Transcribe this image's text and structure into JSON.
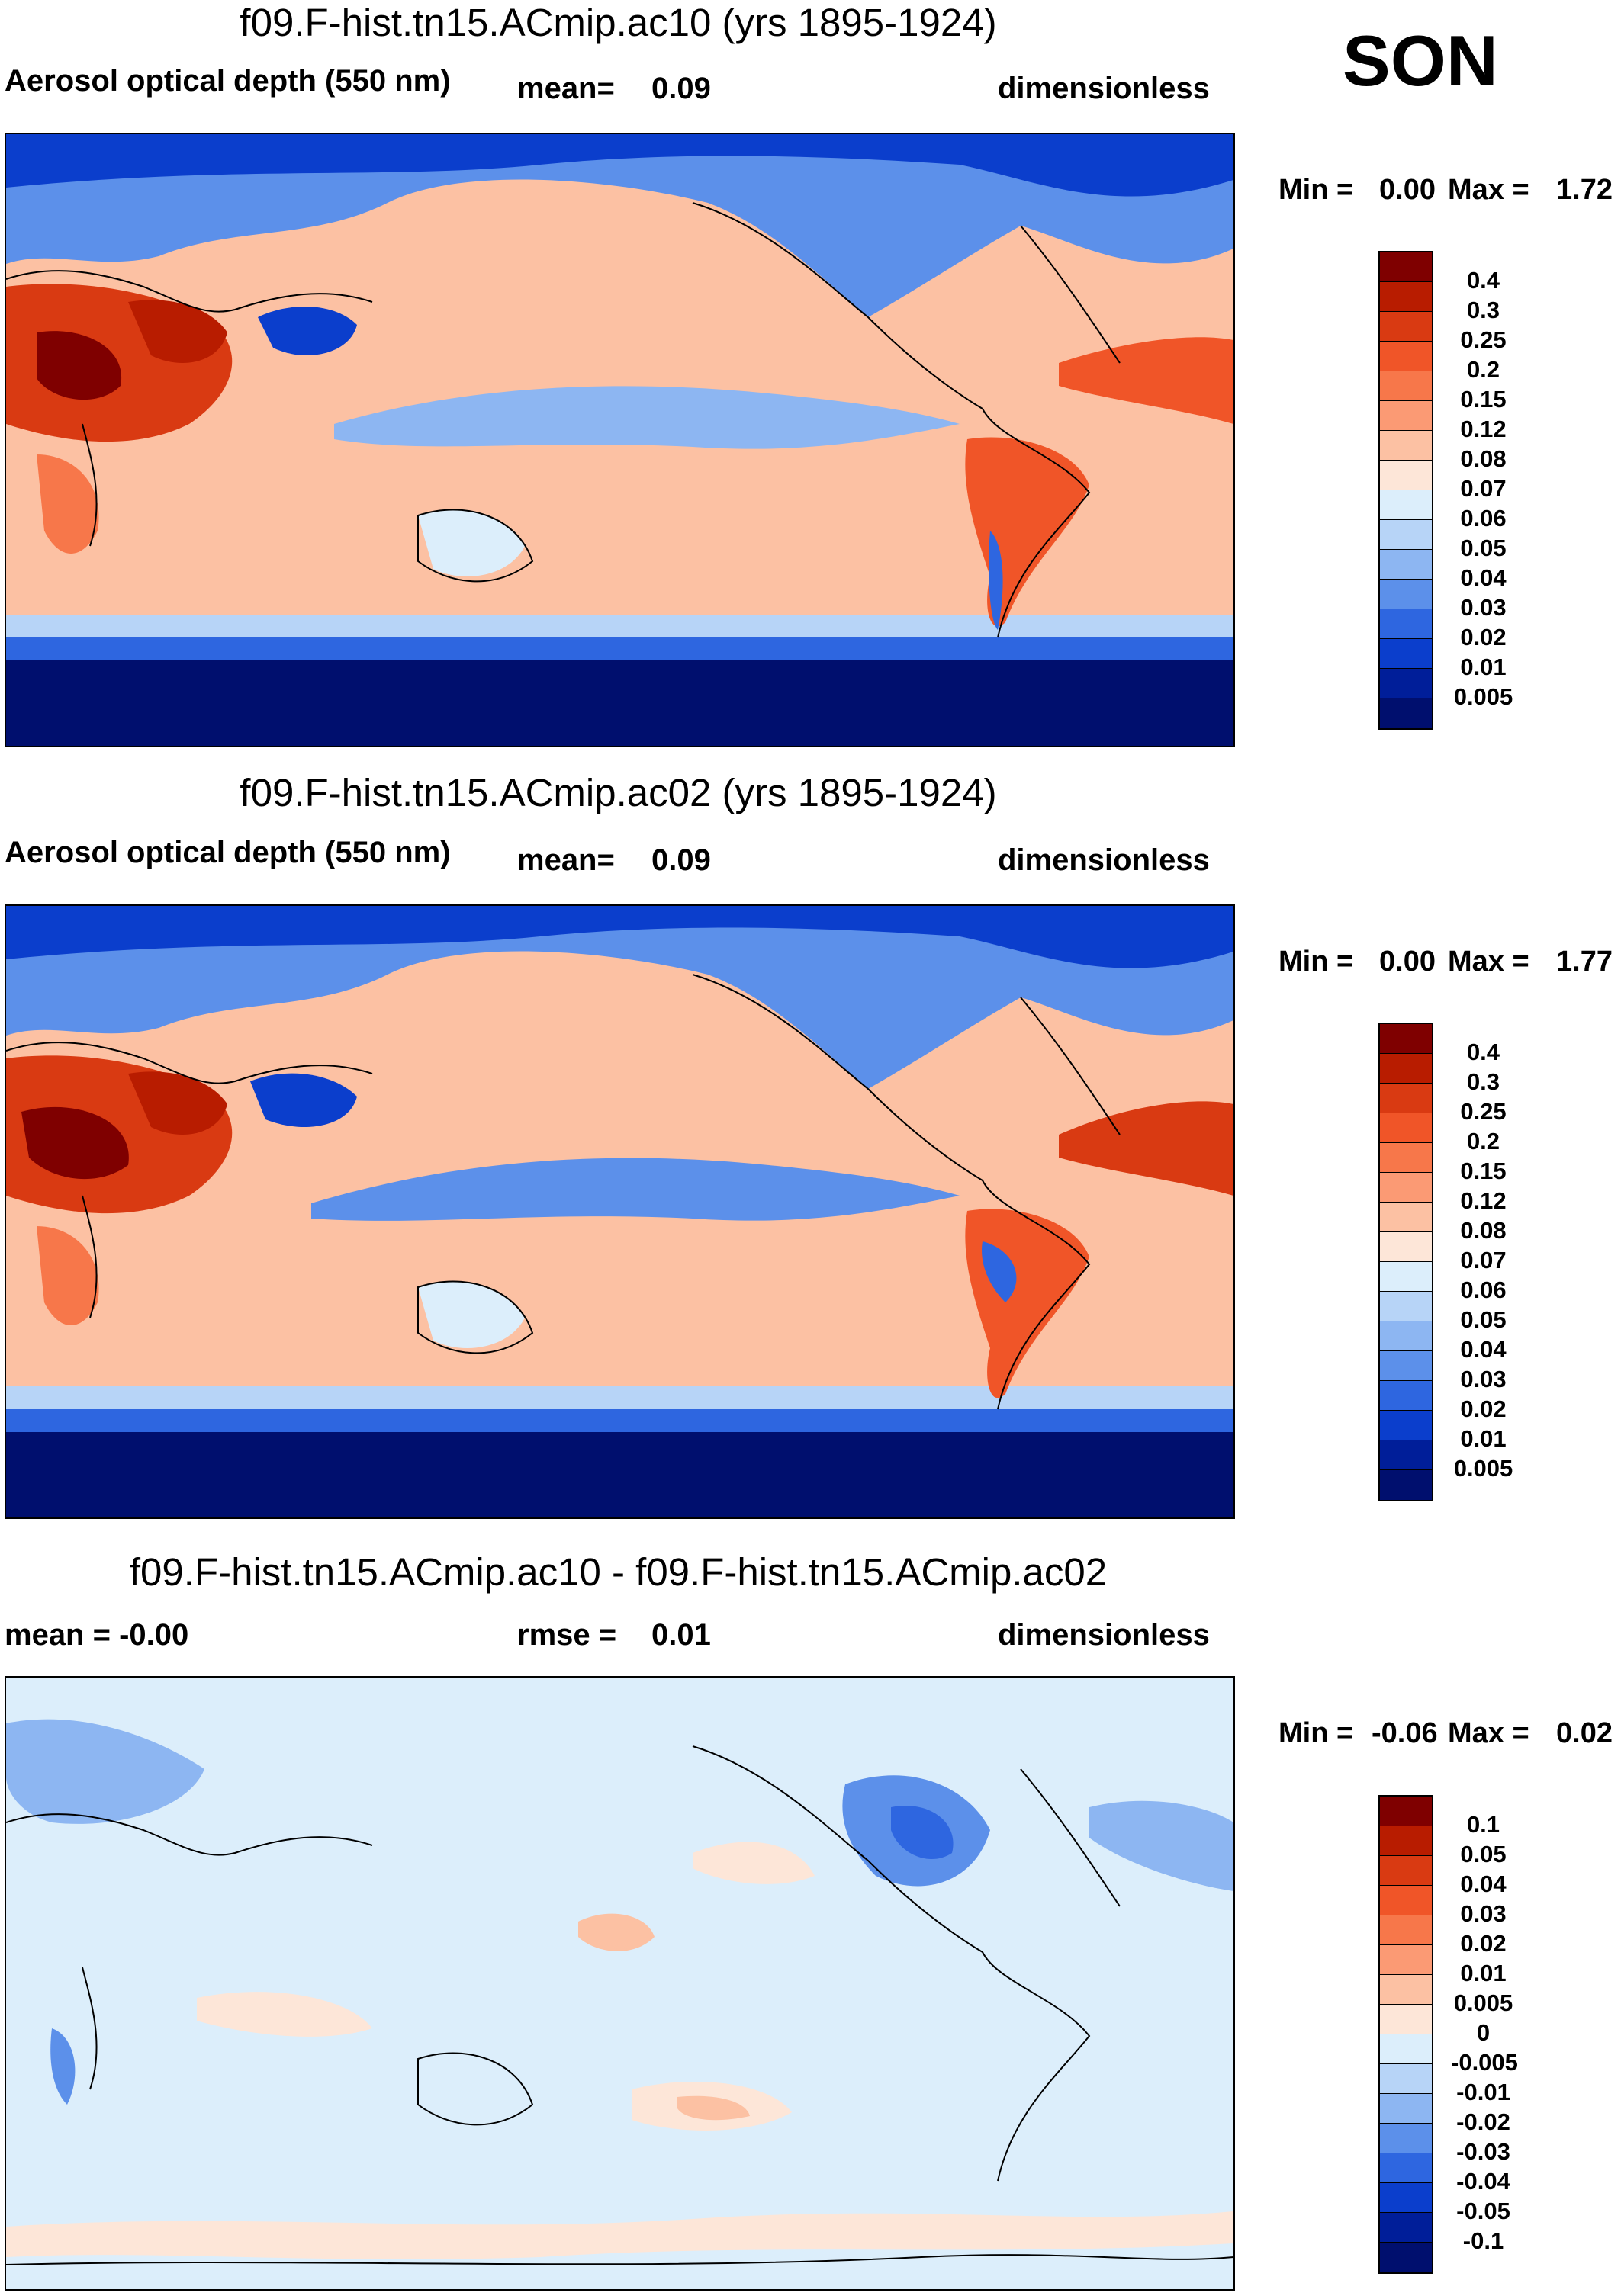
{
  "season": "SON",
  "panels": [
    {
      "title": "f09.F-hist.tn15.ACmip.ac10 (yrs 1895-1924)",
      "left_label": "Aerosol optical depth (550 nm)",
      "stat1_label": "mean=",
      "stat1_value": "0.09",
      "units": "dimensionless",
      "min_label": "Min =",
      "min_value": "0.00",
      "max_label": "Max =",
      "max_value": "1.72"
    },
    {
      "title": "f09.F-hist.tn15.ACmip.ac02 (yrs 1895-1924)",
      "left_label": "Aerosol optical depth (550 nm)",
      "stat1_label": "mean=",
      "stat1_value": "0.09",
      "units": "dimensionless",
      "min_label": "Min =",
      "min_value": "0.00",
      "max_label": "Max =",
      "max_value": "1.77"
    },
    {
      "title": "f09.F-hist.tn15.ACmip.ac10 - f09.F-hist.tn15.ACmip.ac02",
      "left_label": "mean =  -0.00",
      "stat1_label": "rmse =",
      "stat1_value": "0.01",
      "units": "dimensionless",
      "min_label": "Min =",
      "min_value": "-0.06",
      "max_label": "Max =",
      "max_value": "0.02"
    }
  ],
  "chart_data": {
    "type": "heatmap",
    "colorbar_abs": {
      "levels": [
        "0.4",
        "0.3",
        "0.25",
        "0.2",
        "0.15",
        "0.12",
        "0.08",
        "0.07",
        "0.06",
        "0.05",
        "0.04",
        "0.03",
        "0.02",
        "0.01",
        "0.005"
      ],
      "colors": [
        "#7f0000",
        "#b81c00",
        "#d93a12",
        "#f05528",
        "#f7774a",
        "#fb9a74",
        "#fcc1a3",
        "#fde6d8",
        "#dceefb",
        "#b7d4f7",
        "#8db6f2",
        "#5c90ea",
        "#2e66e0",
        "#0b3ecc",
        "#001e99",
        "#000f6e"
      ]
    },
    "colorbar_diff": {
      "levels": [
        "0.1",
        "0.05",
        "0.04",
        "0.03",
        "0.02",
        "0.01",
        "0.005",
        "0",
        "-0.005",
        "-0.01",
        "-0.02",
        "-0.03",
        "-0.04",
        "-0.05",
        "-0.1"
      ],
      "colors": [
        "#7f0000",
        "#b81c00",
        "#d93a12",
        "#f05528",
        "#f7774a",
        "#fb9a74",
        "#fcc1a3",
        "#fde6d8",
        "#dceefb",
        "#b7d4f7",
        "#8db6f2",
        "#5c90ea",
        "#2e66e0",
        "#0b3ecc",
        "#001e99",
        "#000f6e"
      ]
    },
    "map_projection": "cylindrical equidistant, Pacific-centered",
    "variable": "Aerosol optical depth (550 nm)"
  }
}
